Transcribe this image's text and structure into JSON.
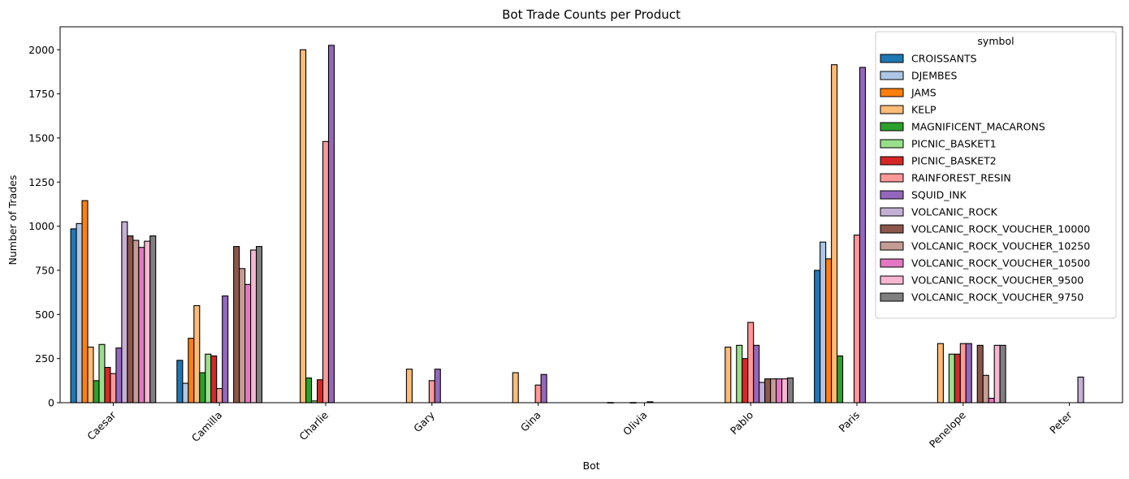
{
  "chart_data": {
    "type": "bar",
    "title": "Bot Trade Counts per Product",
    "xlabel": "Bot",
    "ylabel": "Number of Trades",
    "ylim": [
      0,
      2130
    ],
    "yticks": [
      0,
      250,
      500,
      750,
      1000,
      1250,
      1500,
      1750,
      2000
    ],
    "grid": false,
    "legend_title": "symbol",
    "legend_position": "top-right",
    "categories": [
      "Caesar",
      "Camilla",
      "Charlie",
      "Gary",
      "Gina",
      "Olivia",
      "Pablo",
      "Paris",
      "Penelope",
      "Peter"
    ],
    "series": [
      {
        "name": "CROISSANTS",
        "color": "#1f77b4",
        "values": [
          985,
          240,
          0,
          0,
          0,
          0,
          0,
          750,
          0,
          0
        ]
      },
      {
        "name": "DJEMBES",
        "color": "#aec7e8",
        "values": [
          1015,
          110,
          0,
          0,
          0,
          1,
          0,
          910,
          0,
          0
        ]
      },
      {
        "name": "JAMS",
        "color": "#ff7f0e",
        "values": [
          1145,
          365,
          0,
          0,
          0,
          0,
          0,
          815,
          0,
          0
        ]
      },
      {
        "name": "KELP",
        "color": "#ffbb78",
        "values": [
          315,
          550,
          2000,
          190,
          170,
          0,
          315,
          1915,
          335,
          0
        ]
      },
      {
        "name": "MAGNIFICENT_MACARONS",
        "color": "#2ca02c",
        "values": [
          125,
          170,
          140,
          0,
          0,
          0,
          0,
          265,
          0,
          0
        ]
      },
      {
        "name": "PICNIC_BASKET1",
        "color": "#98df8a",
        "values": [
          330,
          275,
          10,
          0,
          0,
          1,
          325,
          0,
          275,
          0
        ]
      },
      {
        "name": "PICNIC_BASKET2",
        "color": "#d62728",
        "values": [
          200,
          265,
          130,
          0,
          0,
          0,
          250,
          0,
          275,
          0
        ]
      },
      {
        "name": "RAINFOREST_RESIN",
        "color": "#ff9896",
        "values": [
          165,
          80,
          1480,
          125,
          100,
          0,
          455,
          950,
          335,
          0
        ]
      },
      {
        "name": "SQUID_INK",
        "color": "#9467bd",
        "values": [
          310,
          605,
          2025,
          190,
          160,
          5,
          325,
          1900,
          335,
          0
        ]
      },
      {
        "name": "VOLCANIC_ROCK",
        "color": "#c5b0d5",
        "values": [
          1025,
          0,
          0,
          0,
          0,
          0,
          115,
          0,
          0,
          145
        ]
      },
      {
        "name": "VOLCANIC_ROCK_VOUCHER_10000",
        "color": "#8c564b",
        "values": [
          945,
          885,
          0,
          0,
          0,
          0,
          135,
          0,
          325,
          0
        ]
      },
      {
        "name": "VOLCANIC_ROCK_VOUCHER_10250",
        "color": "#c49c94",
        "values": [
          920,
          760,
          0,
          0,
          0,
          0,
          135,
          0,
          155,
          0
        ]
      },
      {
        "name": "VOLCANIC_ROCK_VOUCHER_10500",
        "color": "#e377c2",
        "values": [
          880,
          670,
          0,
          0,
          0,
          0,
          135,
          0,
          25,
          0
        ]
      },
      {
        "name": "VOLCANIC_ROCK_VOUCHER_9500",
        "color": "#f7b6d2",
        "values": [
          915,
          865,
          0,
          0,
          0,
          0,
          135,
          0,
          325,
          0
        ]
      },
      {
        "name": "VOLCANIC_ROCK_VOUCHER_9750",
        "color": "#7f7f7f",
        "values": [
          945,
          885,
          0,
          0,
          0,
          0,
          140,
          0,
          325,
          0
        ]
      }
    ]
  }
}
